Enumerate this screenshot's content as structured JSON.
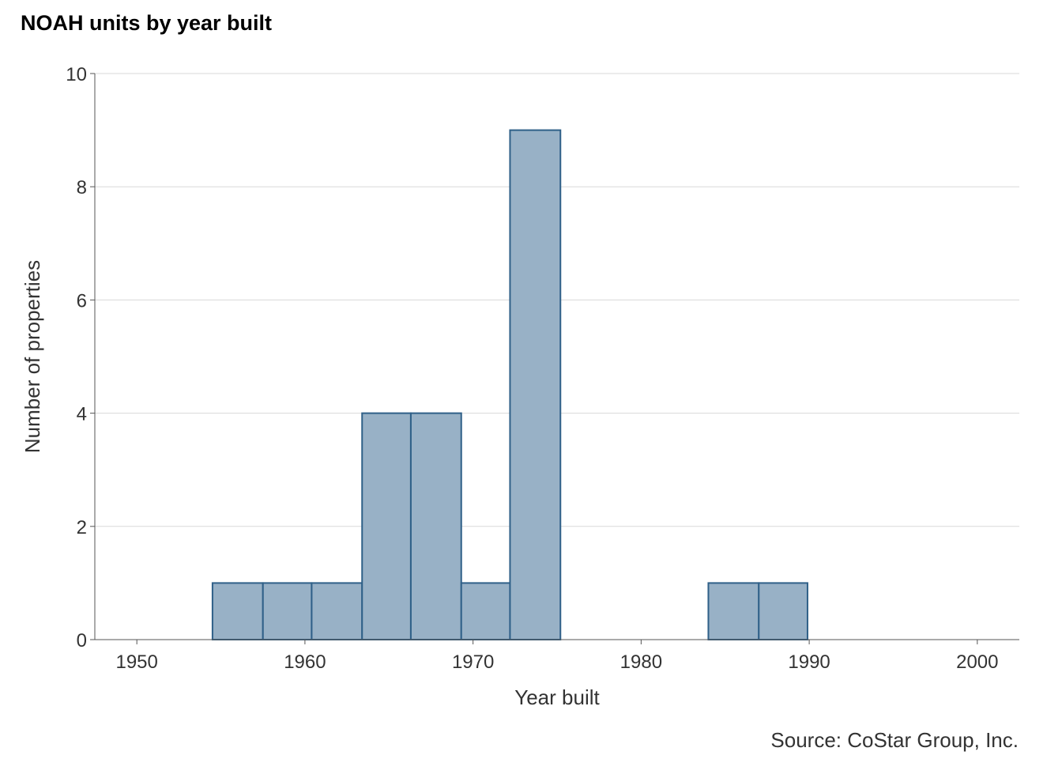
{
  "chart_data": {
    "type": "bar",
    "title": "NOAH units by year built",
    "xlabel": "Year built",
    "ylabel": "Number of properties",
    "caption": "Source: CoStar Group, Inc.",
    "xlim": [
      1947.5,
      2002.5
    ],
    "ylim": [
      0,
      10
    ],
    "x_ticks": [
      1950,
      1960,
      1970,
      1980,
      1990,
      2000
    ],
    "y_ticks": [
      0,
      2,
      4,
      6,
      8,
      10
    ],
    "grid": true,
    "legend": "none",
    "colors": {
      "fill": "#98b1c6",
      "stroke": "#2f6088",
      "grid": "#d9d9d9",
      "axis": "#555555"
    },
    "bins": [
      {
        "x0": 1951.6,
        "x1": 1954.5,
        "count": 0
      },
      {
        "x0": 1954.5,
        "x1": 1957.5,
        "count": 1
      },
      {
        "x0": 1957.5,
        "x1": 1960.4,
        "count": 1
      },
      {
        "x0": 1960.4,
        "x1": 1963.4,
        "count": 1
      },
      {
        "x0": 1963.4,
        "x1": 1966.3,
        "count": 4
      },
      {
        "x0": 1966.3,
        "x1": 1969.3,
        "count": 4
      },
      {
        "x0": 1969.3,
        "x1": 1972.2,
        "count": 1
      },
      {
        "x0": 1972.2,
        "x1": 1975.2,
        "count": 9
      },
      {
        "x0": 1975.2,
        "x1": 1978.1,
        "count": 0
      },
      {
        "x0": 1978.1,
        "x1": 1981.1,
        "count": 0
      },
      {
        "x0": 1981.1,
        "x1": 1984.0,
        "count": 0
      },
      {
        "x0": 1984.0,
        "x1": 1987.0,
        "count": 1
      },
      {
        "x0": 1987.0,
        "x1": 1989.9,
        "count": 1
      },
      {
        "x0": 1989.9,
        "x1": 1992.8,
        "count": 0
      },
      {
        "x0": 1992.8,
        "x1": 1995.8,
        "count": 0
      },
      {
        "x0": 1995.8,
        "x1": 1998.7,
        "count": 0
      }
    ]
  }
}
